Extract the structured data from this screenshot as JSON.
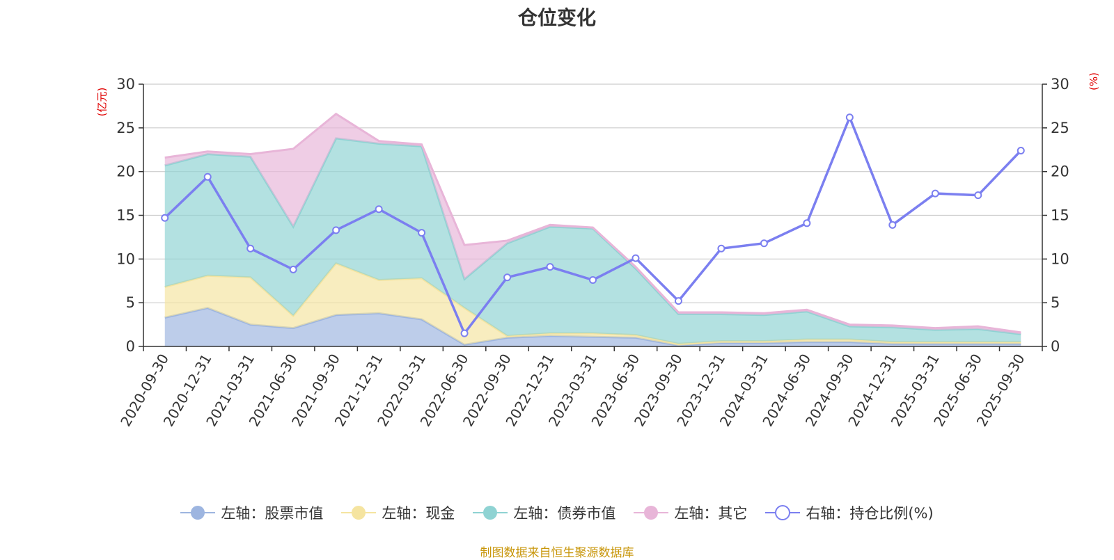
{
  "chart_data": {
    "type": "area",
    "title": "仓位变化",
    "left_unit": "(亿元)",
    "right_unit": "(%)",
    "categories": [
      "2020-09-30",
      "2020-12-31",
      "2021-03-31",
      "2021-06-30",
      "2021-09-30",
      "2021-12-31",
      "2022-03-31",
      "2022-06-30",
      "2022-09-30",
      "2022-12-31",
      "2023-03-31",
      "2023-06-30",
      "2023-09-30",
      "2023-12-31",
      "2024-03-31",
      "2024-06-30",
      "2024-09-30",
      "2024-12-31",
      "2025-03-31",
      "2025-06-30",
      "2025-09-30"
    ],
    "left_ylim": [
      0,
      30
    ],
    "right_ylim": [
      0,
      30
    ],
    "left_ticks": [
      0,
      5,
      10,
      15,
      20,
      25,
      30
    ],
    "right_ticks": [
      0,
      5,
      10,
      15,
      20,
      25,
      30
    ],
    "grid": true,
    "stacked_series": [
      {
        "name": "左轴：股票市值",
        "axis": "left",
        "color": "#9db5e0",
        "values": [
          3.3,
          4.4,
          2.5,
          2.1,
          3.6,
          3.8,
          3.1,
          0.2,
          1.0,
          1.2,
          1.1,
          1.0,
          0.1,
          0.4,
          0.4,
          0.5,
          0.5,
          0.3,
          0.3,
          0.3,
          0.3
        ]
      },
      {
        "name": "左轴：现金",
        "axis": "left",
        "color": "#f5e4a0",
        "values": [
          3.5,
          3.7,
          5.4,
          1.4,
          5.9,
          3.8,
          4.7,
          4.2,
          0.2,
          0.3,
          0.4,
          0.3,
          0.2,
          0.2,
          0.2,
          0.3,
          0.3,
          0.2,
          0.2,
          0.2,
          0.2
        ]
      },
      {
        "name": "左轴：债券市值",
        "axis": "left",
        "color": "#8fd3d3",
        "values": [
          13.9,
          13.9,
          13.8,
          10.2,
          14.3,
          15.6,
          15.1,
          3.3,
          10.6,
          12.2,
          12.0,
          7.6,
          3.4,
          3.1,
          3.0,
          3.2,
          1.5,
          1.7,
          1.4,
          1.5,
          0.9
        ]
      },
      {
        "name": "左轴：其它",
        "axis": "left",
        "color": "#e8b5d8",
        "values": [
          0.9,
          0.3,
          0.3,
          8.9,
          2.8,
          0.3,
          0.2,
          3.9,
          0.3,
          0.2,
          0.1,
          0.2,
          0.2,
          0.2,
          0.2,
          0.2,
          0.2,
          0.2,
          0.2,
          0.3,
          0.2
        ]
      }
    ],
    "line_series": {
      "name": "右轴：持仓比例(%)",
      "axis": "right",
      "color": "#7b7ff0",
      "values": [
        14.7,
        19.4,
        11.2,
        8.8,
        13.3,
        15.7,
        13.0,
        1.5,
        7.9,
        9.1,
        7.6,
        10.1,
        5.2,
        11.2,
        11.8,
        14.1,
        26.2,
        13.9,
        17.5,
        17.3,
        22.4
      ]
    },
    "legend_position": "bottom-center"
  },
  "footer": "制图数据来自恒生聚源数据库"
}
